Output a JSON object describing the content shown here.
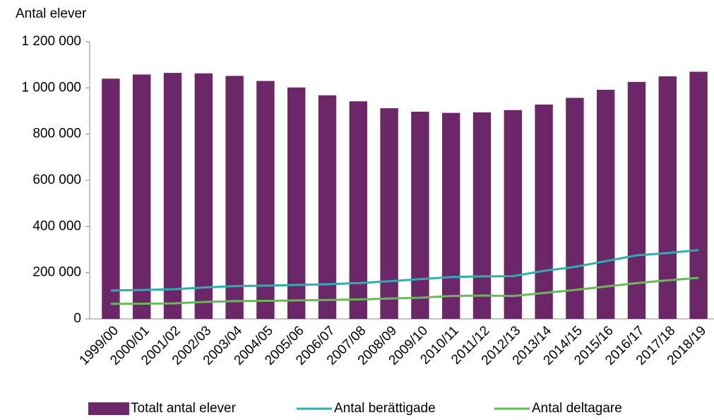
{
  "chart_data": {
    "type": "bar_line",
    "y_label": "Antal elever",
    "categories": [
      "1999/00",
      "2000/01",
      "2001/02",
      "2002/03",
      "2003/04",
      "2004/05",
      "2005/06",
      "2006/07",
      "2007/08",
      "2008/09",
      "2009/10",
      "2010/11",
      "2011/12",
      "2012/13",
      "2013/14",
      "2014/15",
      "2015/16",
      "2016/17",
      "2017/18",
      "2018/19"
    ],
    "series": [
      {
        "name": "Totalt antal elever",
        "kind": "bar",
        "color": "#6b2767",
        "values": [
          1040000,
          1058000,
          1065000,
          1063000,
          1052000,
          1030000,
          1002000,
          968000,
          942000,
          912000,
          897000,
          892000,
          894000,
          904000,
          928000,
          957000,
          992000,
          1026000,
          1050000,
          1070000
        ]
      },
      {
        "name": "Antal berättigade",
        "kind": "line",
        "color": "#2bafb0",
        "values": [
          123000,
          125000,
          128000,
          136000,
          142000,
          144000,
          147000,
          150000,
          155000,
          163000,
          172000,
          181000,
          184000,
          185000,
          208000,
          225000,
          250000,
          275000,
          285000,
          298000
        ]
      },
      {
        "name": "Antal deltagare",
        "kind": "line",
        "color": "#6bb85b",
        "values": [
          65000,
          66000,
          67000,
          73000,
          77000,
          78000,
          80000,
          82000,
          84000,
          88000,
          92000,
          99000,
          101000,
          99000,
          112000,
          125000,
          140000,
          155000,
          167000,
          178000
        ]
      }
    ],
    "ylim": [
      0,
      1200000
    ],
    "yticks": [
      0,
      {
        "value": 200000,
        "label": "200 000"
      },
      {
        "value": 400000,
        "label": "400 000"
      },
      {
        "value": 600000,
        "label": "600 000"
      },
      {
        "value": 800000,
        "label": "800 000"
      },
      {
        "value": 1000000,
        "label": "1 000 000"
      },
      {
        "value": 1200000,
        "label": "1 200 000"
      }
    ],
    "legend": "bottom"
  }
}
